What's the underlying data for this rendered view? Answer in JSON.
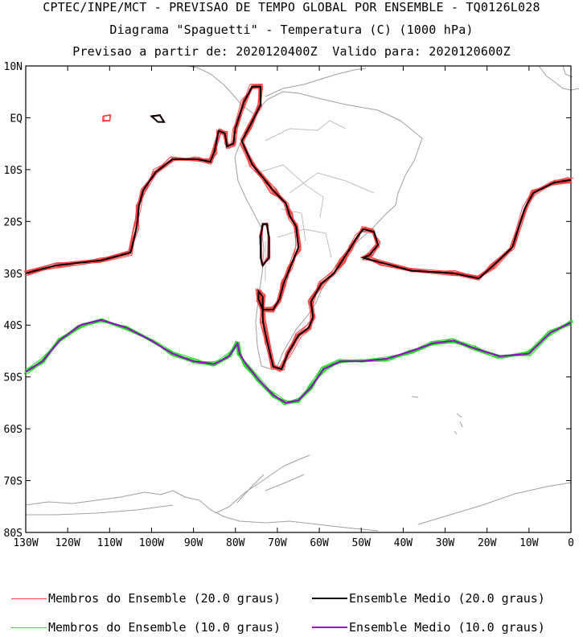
{
  "titles": {
    "line1": "CPTEC/INPE/MCT - PREVISAO DE TEMPO GLOBAL POR ENSEMBLE - TQ0126L028",
    "line2": "Diagrama \"Spaguetti\" - Temperatura (C) (1000 hPa)",
    "line3": "Previsao a partir de: 2020120400Z  Valido para: 2020120600Z"
  },
  "axes": {
    "lat_labels": [
      "10N",
      "EQ",
      "10S",
      "20S",
      "30S",
      "40S",
      "50S",
      "60S",
      "70S",
      "80S"
    ],
    "lon_labels": [
      "130W",
      "120W",
      "110W",
      "100W",
      "90W",
      "80W",
      "70W",
      "60W",
      "50W",
      "40W",
      "30W",
      "20W",
      "10W",
      "0"
    ]
  },
  "legend": {
    "member20": "Membros do Ensemble (20.0 graus)",
    "mean20": "Ensemble Medio (20.0 graus)",
    "member10": "Membros do Ensemble (10.0 graus)",
    "mean10": "Ensemble Medio (10.0 graus)"
  },
  "colors": {
    "member20": "#ff4040",
    "mean20": "#000000",
    "member10": "#22dd22",
    "mean10": "#9900cc",
    "coast": "#a0a0a0"
  },
  "map_data": {
    "lon_range": [
      -130,
      0
    ],
    "lat_range": [
      -80,
      10
    ],
    "isotherm_20": [
      [
        -130,
        -30
      ],
      [
        -123,
        -28.5
      ],
      [
        -112,
        -27.5
      ],
      [
        -105,
        -26
      ],
      [
        -103.5,
        -21
      ],
      [
        -103,
        -17
      ],
      [
        -102,
        -14
      ],
      [
        -99,
        -10.5
      ],
      [
        -95,
        -8
      ],
      [
        -89,
        -8
      ],
      [
        -86,
        -8.5
      ],
      [
        -85,
        -6.5
      ],
      [
        -84,
        -2.5
      ],
      [
        -82.5,
        -3
      ],
      [
        -82,
        -5.5
      ],
      [
        -80.5,
        -5
      ],
      [
        -80,
        -2
      ],
      [
        -78,
        3
      ],
      [
        -76,
        6
      ],
      [
        -74,
        6
      ],
      [
        -74,
        2.5
      ],
      [
        -76.5,
        -1.5
      ],
      [
        -78.5,
        -4.5
      ],
      [
        -76,
        -9
      ],
      [
        -71,
        -14
      ],
      [
        -68,
        -16.5
      ],
      [
        -67,
        -19
      ],
      [
        -65.5,
        -21
      ],
      [
        -65,
        -25
      ],
      [
        -67,
        -29
      ],
      [
        -68.5,
        -32
      ],
      [
        -69.5,
        -35
      ],
      [
        -71,
        -37
      ],
      [
        -73.5,
        -37
      ],
      [
        -74.5,
        -35
      ],
      [
        -74.5,
        -33.5
      ],
      [
        -73.5,
        -34.5
      ],
      [
        -73.5,
        -39
      ],
      [
        -72.5,
        -43
      ],
      [
        -71,
        -48
      ],
      [
        -69,
        -48.5
      ],
      [
        -67.5,
        -45.5
      ],
      [
        -65,
        -42
      ],
      [
        -62.5,
        -40.5
      ],
      [
        -61.5,
        -38.5
      ],
      [
        -62,
        -35.5
      ],
      [
        -59.5,
        -32
      ],
      [
        -56.5,
        -30
      ],
      [
        -54.5,
        -27.5
      ],
      [
        -52.5,
        -25
      ],
      [
        -51,
        -23
      ],
      [
        -49.5,
        -21.5
      ],
      [
        -47,
        -22
      ],
      [
        -46,
        -24.5
      ],
      [
        -48,
        -26.5
      ],
      [
        -49.5,
        -27
      ],
      [
        -45,
        -28
      ],
      [
        -38,
        -29.5
      ],
      [
        -28,
        -30
      ],
      [
        -22,
        -31
      ],
      [
        -18.5,
        -28.5
      ],
      [
        -14,
        -25
      ],
      [
        -11,
        -17.5
      ],
      [
        -9,
        -14.5
      ],
      [
        -4,
        -12.5
      ],
      [
        0,
        -12
      ]
    ],
    "isotherm_20_pacific": [
      [
        -74,
        -23
      ],
      [
        -73.5,
        -20.5
      ],
      [
        -72.5,
        -20.5
      ],
      [
        -72,
        -23
      ],
      [
        -72,
        -27
      ],
      [
        -73.5,
        -28.5
      ],
      [
        -74,
        -27
      ]
    ],
    "isotherm_20_islands": [
      [
        [
          -100,
          0.3
        ],
        [
          -98.5,
          -0.8
        ],
        [
          -97,
          -0.8
        ],
        [
          -98,
          0.5
        ]
      ],
      [
        [
          -111.5,
          0.3
        ],
        [
          -109.8,
          0.6
        ],
        [
          -109.8,
          -0.6
        ],
        [
          -111.5,
          -0.6
        ]
      ]
    ],
    "isotherm_10": [
      [
        -130,
        -49
      ],
      [
        -126,
        -47
      ],
      [
        -122,
        -43
      ],
      [
        -117,
        -40
      ],
      [
        -112,
        -39
      ],
      [
        -106,
        -40.5
      ],
      [
        -100,
        -43
      ],
      [
        -95,
        -45.5
      ],
      [
        -90,
        -47
      ],
      [
        -85,
        -47.5
      ],
      [
        -81.5,
        -46
      ],
      [
        -79.5,
        -43.5
      ],
      [
        -79,
        -45.5
      ],
      [
        -77.5,
        -47.5
      ],
      [
        -74.5,
        -50.5
      ],
      [
        -71,
        -53.5
      ],
      [
        -68,
        -55
      ],
      [
        -65,
        -54.5
      ],
      [
        -62,
        -52
      ],
      [
        -59,
        -48.5
      ],
      [
        -55,
        -47
      ],
      [
        -50,
        -47
      ],
      [
        -44,
        -46.5
      ],
      [
        -38,
        -45
      ],
      [
        -33,
        -43.5
      ],
      [
        -28,
        -43
      ],
      [
        -23,
        -44.5
      ],
      [
        -17,
        -46
      ],
      [
        -10,
        -45.5
      ],
      [
        -5,
        -41.5
      ],
      [
        0,
        -39.5
      ]
    ]
  }
}
